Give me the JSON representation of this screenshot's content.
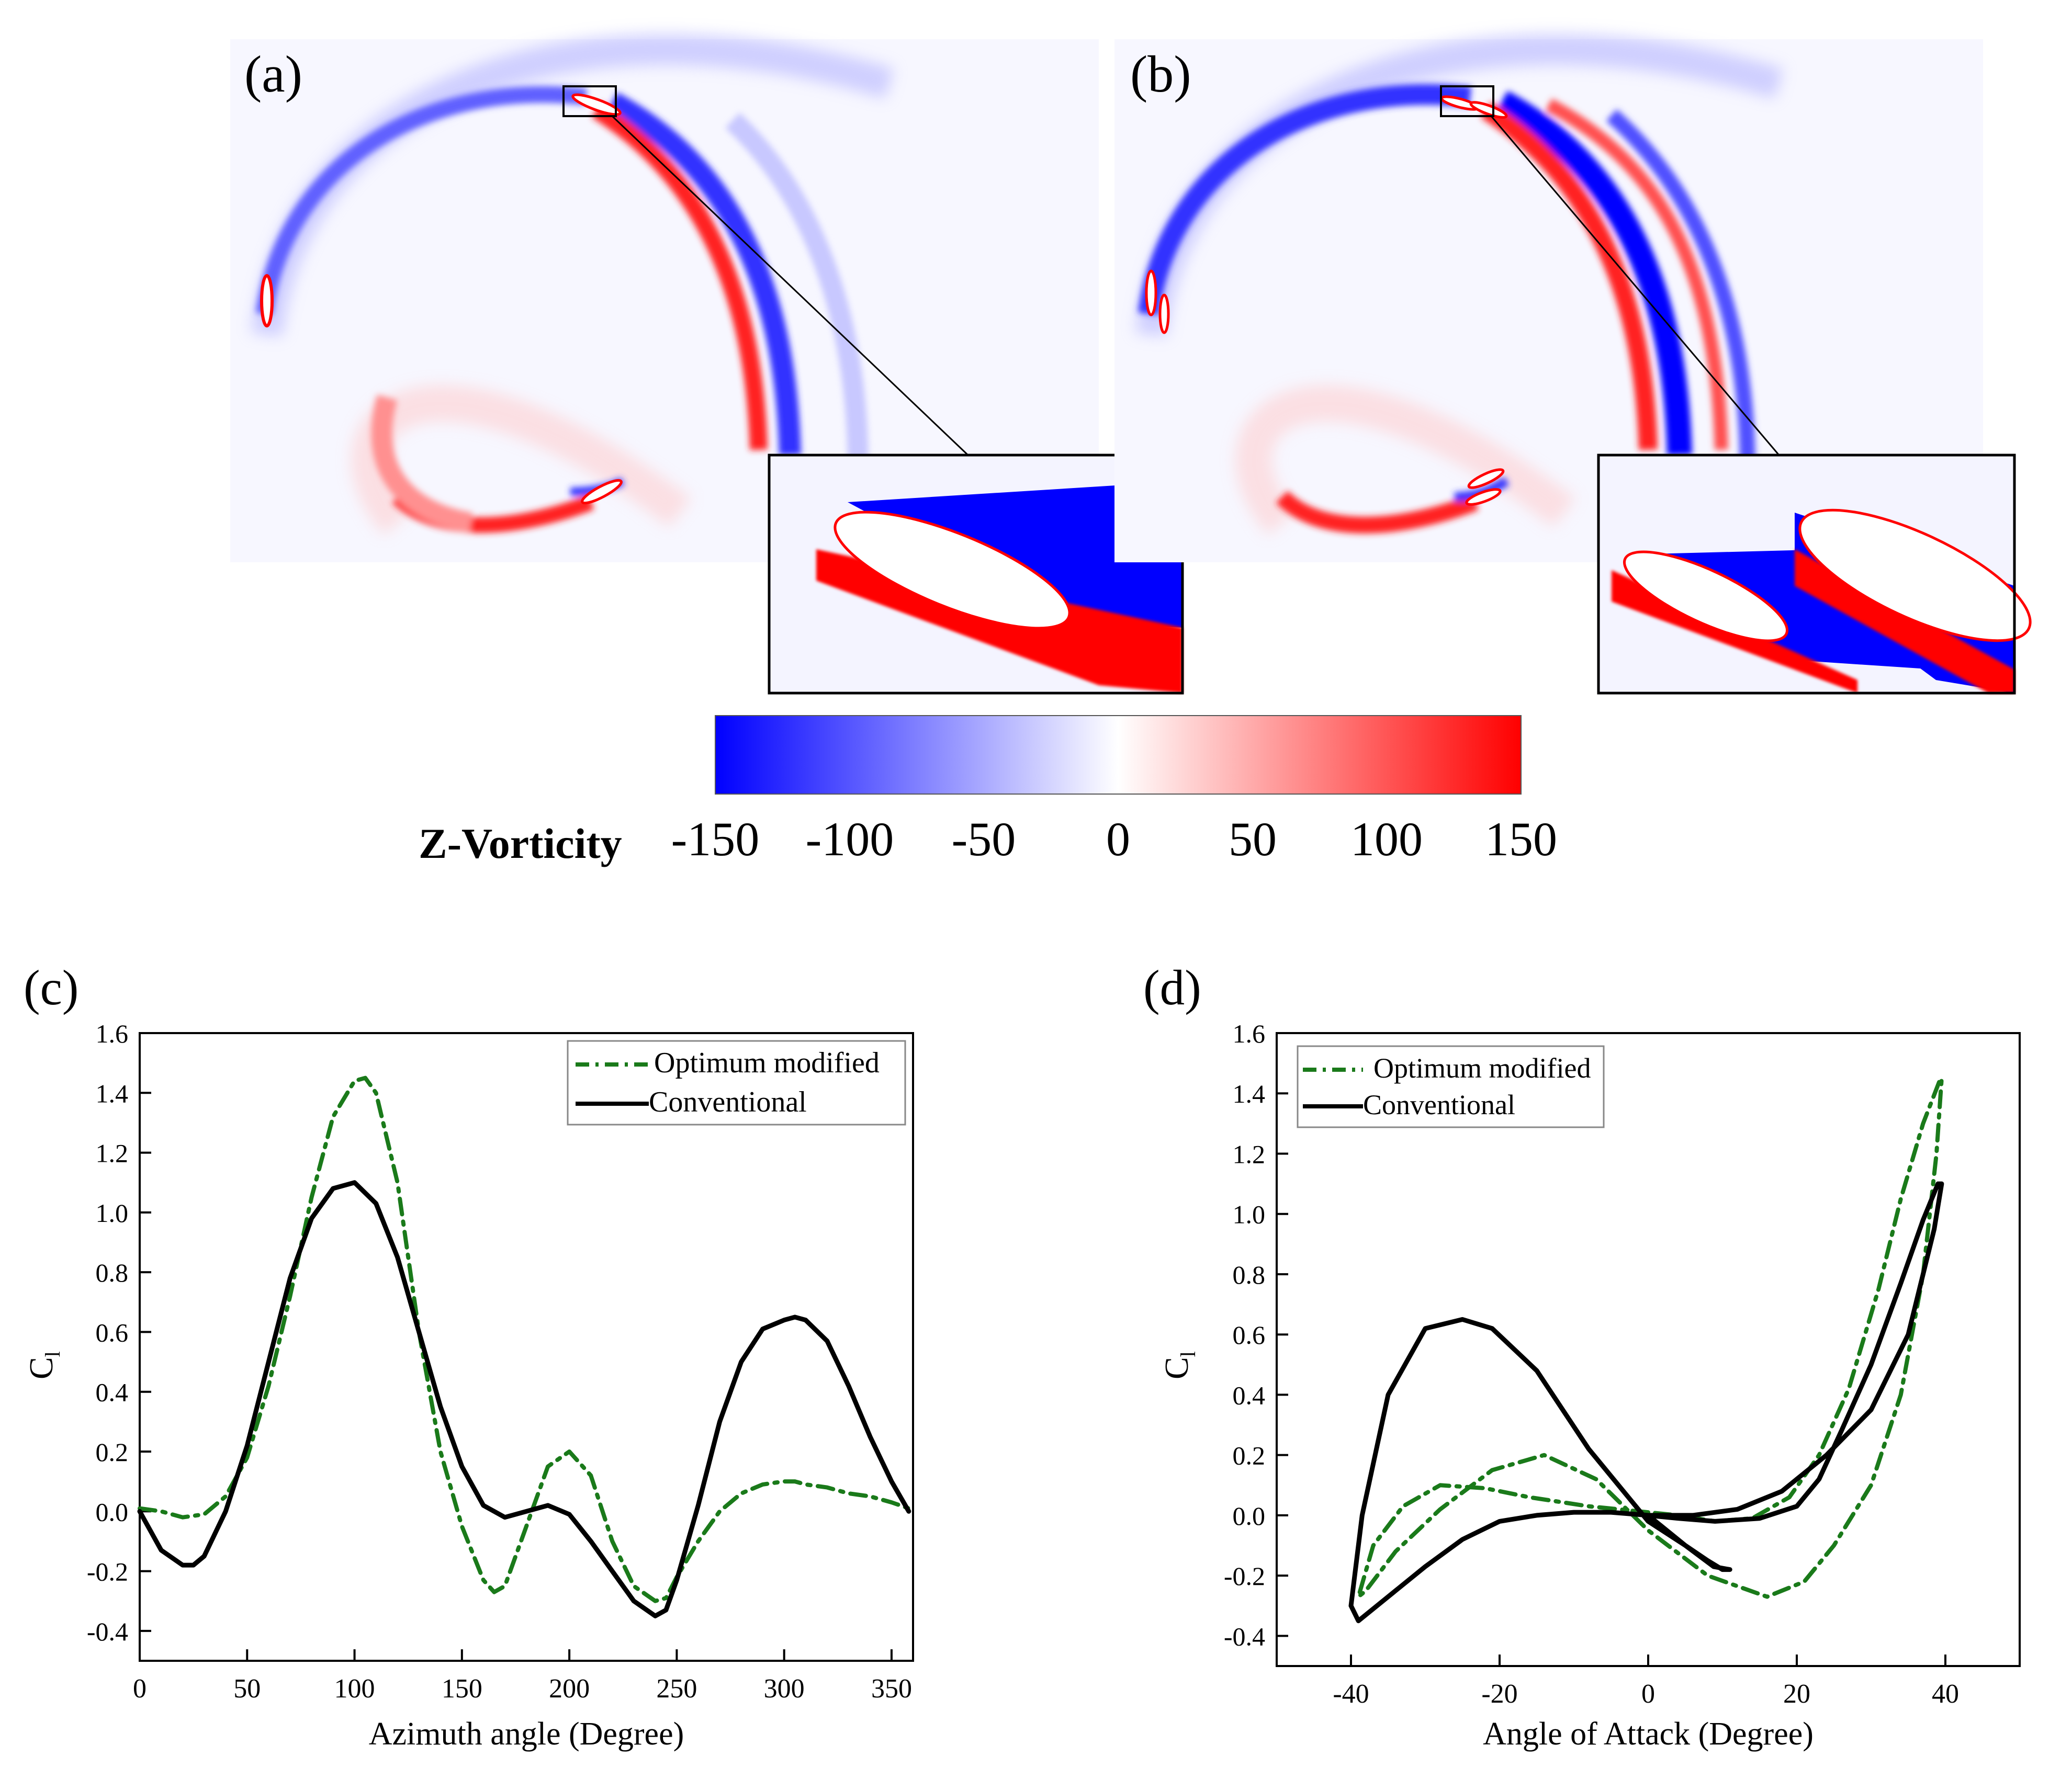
{
  "figure": {
    "panel_a_label": "(a)",
    "panel_b_label": "(b)",
    "panel_c_label": "(c)",
    "panel_d_label": "(d)"
  },
  "colorbar": {
    "title": "Z-Vorticity",
    "ticks": [
      "-150",
      "-100",
      "-50",
      "0",
      "50",
      "100",
      "150"
    ],
    "min": -150,
    "max": 150,
    "colors": [
      "#0000ff",
      "#ffffff",
      "#ff0000"
    ]
  },
  "colors": {
    "optimum": "#1a7a1a",
    "conventional": "#000000",
    "vort_pos": "#ff0000",
    "vort_neg": "#0000ff"
  },
  "chart_data": [
    {
      "type": "line",
      "panel": "(c)",
      "title": "",
      "xlabel": "Azimuth angle (Degree)",
      "ylabel": "Cl",
      "xlim": [
        0,
        360
      ],
      "ylim": [
        -0.5,
        1.6
      ],
      "xticks": [
        "0",
        "50",
        "100",
        "150",
        "200",
        "250",
        "300",
        "350"
      ],
      "yticks": [
        "-0.4",
        "-0.2",
        "0.0",
        "0.2",
        "0.4",
        "0.6",
        "0.8",
        "1.0",
        "1.2",
        "1.4",
        "1.6"
      ],
      "legend": [
        "Optimum modified",
        "Conventional"
      ],
      "legend_position": "top-right",
      "series": [
        {
          "name": "Optimum modified",
          "style": "dash-dot",
          "x": [
            0,
            10,
            20,
            30,
            40,
            50,
            60,
            70,
            80,
            90,
            100,
            105,
            110,
            120,
            130,
            140,
            150,
            160,
            165,
            170,
            180,
            190,
            200,
            210,
            220,
            230,
            240,
            245,
            250,
            260,
            270,
            280,
            290,
            300,
            305,
            310,
            320,
            330,
            340,
            350,
            358
          ],
          "y": [
            0.01,
            0.0,
            -0.02,
            -0.01,
            0.05,
            0.18,
            0.42,
            0.72,
            1.05,
            1.32,
            1.44,
            1.45,
            1.4,
            1.1,
            0.6,
            0.2,
            -0.05,
            -0.23,
            -0.27,
            -0.25,
            -0.05,
            0.15,
            0.2,
            0.12,
            -0.1,
            -0.25,
            -0.3,
            -0.29,
            -0.22,
            -0.1,
            0.0,
            0.06,
            0.09,
            0.1,
            0.1,
            0.09,
            0.08,
            0.06,
            0.05,
            0.03,
            0.01
          ]
        },
        {
          "name": "Conventional",
          "style": "solid",
          "x": [
            0,
            10,
            20,
            25,
            30,
            40,
            50,
            60,
            70,
            80,
            90,
            100,
            110,
            120,
            130,
            140,
            150,
            160,
            170,
            180,
            190,
            200,
            210,
            220,
            230,
            240,
            245,
            250,
            260,
            270,
            280,
            290,
            300,
            305,
            310,
            320,
            330,
            340,
            350,
            358
          ],
          "y": [
            0.0,
            -0.13,
            -0.18,
            -0.18,
            -0.15,
            0.0,
            0.22,
            0.5,
            0.78,
            0.98,
            1.08,
            1.1,
            1.03,
            0.85,
            0.6,
            0.35,
            0.15,
            0.02,
            -0.02,
            0.0,
            0.02,
            -0.01,
            -0.1,
            -0.2,
            -0.3,
            -0.35,
            -0.33,
            -0.23,
            0.02,
            0.3,
            0.5,
            0.61,
            0.64,
            0.65,
            0.64,
            0.57,
            0.42,
            0.25,
            0.1,
            0.0
          ]
        }
      ]
    },
    {
      "type": "line",
      "panel": "(d)",
      "title": "",
      "xlabel": "Angle of Attack (Degree)",
      "ylabel": "Cl",
      "xlim": [
        -50,
        50
      ],
      "ylim": [
        -0.5,
        1.6
      ],
      "xticks": [
        "-40",
        "-20",
        "0",
        "20",
        "40"
      ],
      "yticks": [
        "-0.4",
        "-0.2",
        "0.0",
        "0.2",
        "0.4",
        "0.6",
        "0.8",
        "1.0",
        "1.2",
        "1.4",
        "1.6"
      ],
      "legend": [
        "Optimum modified",
        "Conventional"
      ],
      "legend_position": "top-left",
      "series": [
        {
          "name": "Optimum modified",
          "style": "dash-dot",
          "x": [
            0,
            -8,
            -16,
            -22,
            -28,
            -33,
            -37,
            -39,
            -38,
            -34,
            -28,
            -21,
            -14,
            -7,
            0,
            8,
            16,
            21,
            25,
            30,
            34,
            37,
            38.8,
            39.5,
            39.2,
            37,
            34,
            31,
            27,
            23,
            19,
            14,
            9,
            4,
            0
          ],
          "y": [
            0.01,
            0.03,
            0.06,
            0.09,
            0.1,
            0.03,
            -0.1,
            -0.27,
            -0.25,
            -0.12,
            0.02,
            0.15,
            0.2,
            0.12,
            -0.05,
            -0.2,
            -0.27,
            -0.22,
            -0.1,
            0.1,
            0.4,
            0.8,
            1.2,
            1.45,
            1.44,
            1.3,
            1.05,
            0.75,
            0.42,
            0.2,
            0.06,
            -0.01,
            -0.02,
            0.0,
            0.01
          ]
        },
        {
          "name": "Conventional",
          "style": "solid",
          "x": [
            0,
            5,
            8.8,
            11,
            10,
            8,
            5,
            0,
            -8,
            -15,
            -21,
            -25,
            -30,
            -35,
            -38.5,
            -40,
            -39,
            -35,
            -30,
            -25,
            -20,
            -15,
            -10,
            -5,
            0,
            6,
            12,
            18,
            24,
            30,
            35,
            38.5,
            39.5,
            39,
            37,
            34,
            30,
            26,
            23,
            20,
            15,
            9,
            4,
            0
          ],
          "y": [
            0.0,
            -0.1,
            -0.17,
            -0.18,
            -0.18,
            -0.15,
            -0.1,
            -0.02,
            0.22,
            0.48,
            0.62,
            0.65,
            0.62,
            0.4,
            0.0,
            -0.3,
            -0.35,
            -0.27,
            -0.17,
            -0.08,
            -0.02,
            0.0,
            0.01,
            0.01,
            0.0,
            0.0,
            0.02,
            0.08,
            0.2,
            0.35,
            0.6,
            0.95,
            1.1,
            1.1,
            0.98,
            0.77,
            0.5,
            0.28,
            0.12,
            0.03,
            -0.01,
            -0.02,
            -0.01,
            0.0
          ]
        }
      ]
    }
  ]
}
